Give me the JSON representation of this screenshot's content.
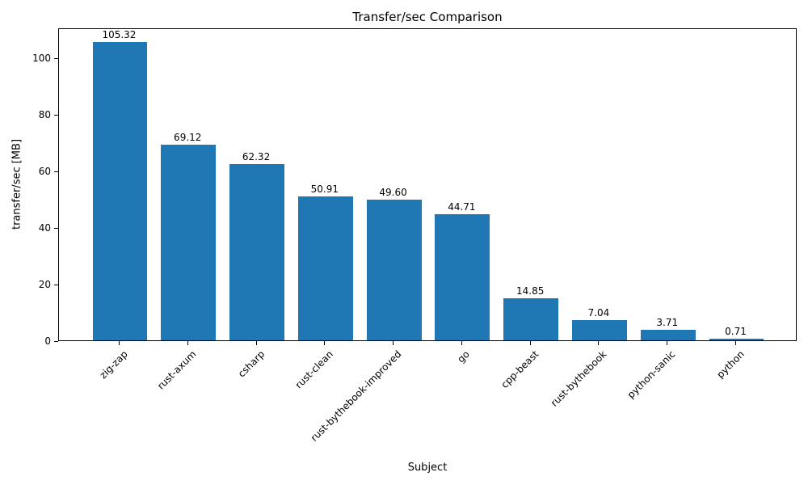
{
  "chart_data": {
    "type": "bar",
    "title": "Transfer/sec Comparison",
    "xlabel": "Subject",
    "ylabel": "transfer/sec [MB]",
    "categories": [
      "zig-zap",
      "rust-axum",
      "csharp",
      "rust-clean",
      "rust-bythebook-improved",
      "go",
      "cpp-beast",
      "rust-bythebook",
      "python-sanic",
      "python"
    ],
    "values": [
      105.32,
      69.12,
      62.32,
      50.91,
      49.6,
      44.71,
      14.85,
      7.04,
      3.71,
      0.71
    ],
    "value_labels": [
      "105.32",
      "69.12",
      "62.32",
      "50.91",
      "49.60",
      "44.71",
      "14.85",
      "7.04",
      "3.71",
      "0.71"
    ],
    "yticks": [
      0,
      20,
      40,
      60,
      80,
      100
    ],
    "ylim": [
      0,
      110.59
    ],
    "bar_color": "#1f77b4",
    "grid": false,
    "legend": null,
    "x_tick_rotation": 45
  }
}
